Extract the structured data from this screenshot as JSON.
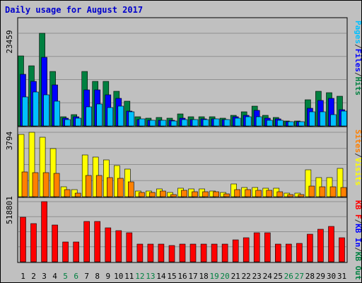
{
  "chart_data": {
    "type": "bar",
    "title": "Daily usage for August 2017",
    "categories": [
      "1",
      "2",
      "3",
      "4",
      "5",
      "6",
      "7",
      "8",
      "9",
      "10",
      "11",
      "12",
      "13",
      "14",
      "15",
      "16",
      "17",
      "18",
      "19",
      "20",
      "21",
      "22",
      "23",
      "24",
      "25",
      "26",
      "27",
      "28",
      "29",
      "30",
      "31"
    ],
    "weekend_days": [
      "5",
      "6",
      "12",
      "13",
      "19",
      "20",
      "26",
      "27"
    ],
    "panels": [
      {
        "name": "hits-files-pages",
        "ymax_label": "23459",
        "ymax": 23459,
        "legend": [
          {
            "text": "Pages",
            "color": "#00c0ff"
          },
          {
            "text": "/",
            "color": "#333333"
          },
          {
            "text": "Files",
            "color": "#0000ff"
          },
          {
            "text": "/",
            "color": "#333333"
          },
          {
            "text": "Hits",
            "color": "#008040"
          }
        ],
        "series": [
          {
            "name": "Hits",
            "color": "#008040",
            "values": [
              17700,
              15200,
              23459,
              13800,
              2400,
              2900,
              13700,
              11300,
              11300,
              8700,
              6200,
              2400,
              1900,
              2200,
              1900,
              3000,
              2300,
              2400,
              2400,
              2000,
              2700,
              3600,
              5000,
              2700,
              2100,
              1300,
              1200,
              6600,
              8800,
              8400,
              7500
            ]
          },
          {
            "name": "Files",
            "color": "#0000ff",
            "values": [
              13000,
              11200,
              17300,
              10300,
              1900,
              2300,
              9200,
              9100,
              7900,
              7000,
              3700,
              1700,
              1400,
              1500,
              1400,
              1900,
              1600,
              1800,
              1800,
              1600,
              2300,
              2700,
              3900,
              2000,
              1800,
              1000,
              1000,
              4400,
              6400,
              6900,
              4200
            ]
          },
          {
            "name": "Pages",
            "color": "#00c0ff",
            "values": [
              7400,
              8600,
              7900,
              6300,
              1600,
              1900,
              4900,
              5500,
              4600,
              5100,
              3600,
              1800,
              1400,
              1500,
              1300,
              1600,
              1600,
              1600,
              1800,
              1600,
              2000,
              2300,
              2300,
              1500,
              1500,
              1000,
              1000,
              3600,
              3500,
              2800,
              3800
            ]
          }
        ]
      },
      {
        "name": "visits-sites",
        "ymax_label": "3794",
        "ymax": 3794,
        "legend": [
          {
            "text": "Sites",
            "color": "#ff8000"
          },
          {
            "text": "/",
            "color": "#333333"
          },
          {
            "text": "Visits",
            "color": "#ffff00"
          }
        ],
        "series": [
          {
            "name": "Visits",
            "color": "#ffff00",
            "values": [
              3650,
              3794,
              3520,
              2850,
              600,
              400,
              2460,
              2350,
              2150,
              1850,
              1630,
              340,
              330,
              440,
              230,
              520,
              460,
              460,
              330,
              260,
              760,
              550,
              540,
              500,
              490,
              200,
              200,
              1600,
              1130,
              1130,
              1680
            ]
          },
          {
            "name": "Sites",
            "color": "#ff8000",
            "values": [
              1460,
              1430,
              1430,
              1360,
              400,
              220,
              1270,
              1240,
              1130,
              1080,
              890,
              230,
              230,
              330,
              130,
              380,
              300,
              300,
              280,
              170,
              430,
              430,
              390,
              360,
              290,
              140,
              140,
              630,
              570,
              580,
              560
            ]
          }
        ]
      },
      {
        "name": "kbytes",
        "ymax_label": "518801",
        "ymax": 518801,
        "legend": [
          {
            "text": "KB F",
            "color": "#ff0000"
          },
          {
            "text": "/",
            "color": "#333333"
          },
          {
            "text": "KB In",
            "color": "#0000ff"
          },
          {
            "text": "/",
            "color": "#333333"
          },
          {
            "text": "KB Out",
            "color": "#008040"
          }
        ],
        "series": [
          {
            "name": "KB F",
            "color": "#ff0000",
            "values": [
              385000,
              330000,
              518801,
              320000,
              170000,
              170000,
              350000,
              345000,
              290000,
              270000,
              250000,
              150000,
              150000,
              150000,
              140000,
              150000,
              150000,
              150000,
              150000,
              155000,
              190000,
              210000,
              250000,
              250000,
              150000,
              150000,
              160000,
              235000,
              280000,
              305000,
              210000
            ]
          }
        ]
      }
    ]
  }
}
